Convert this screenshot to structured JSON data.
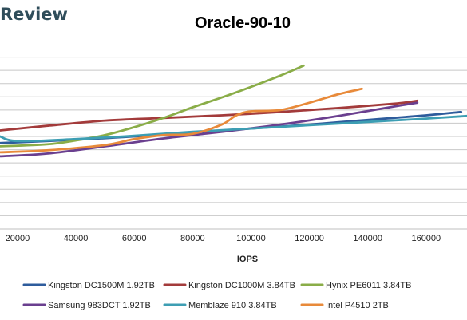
{
  "brand": {
    "text": "Review"
  },
  "chart_data": {
    "type": "line",
    "title": "Oracle-90-10",
    "xlabel": "IOPS",
    "ylabel": "",
    "xlim": [
      14000,
      174000
    ],
    "ylim": [
      0,
      14
    ],
    "x_ticks": [
      20000,
      40000,
      60000,
      80000,
      100000,
      120000,
      140000,
      160000
    ],
    "x_tick_labels": [
      "20000",
      "40000",
      "60000",
      "80000",
      "100000",
      "120000",
      "140000",
      "160000"
    ],
    "y_gridlines": [
      1,
      2,
      3,
      4,
      5,
      6,
      7,
      8,
      9,
      10,
      11,
      12,
      13
    ],
    "grid": true,
    "legend_position": "bottom",
    "series": [
      {
        "name": "Kingston DC1500M 1.92TB",
        "color": "#2e5c9c",
        "x": [
          14000,
          40000,
          60000,
          80000,
          100000,
          120000,
          140000,
          160000,
          172000
        ],
        "y": [
          6.5,
          6.75,
          7.0,
          7.3,
          7.6,
          7.9,
          8.25,
          8.6,
          8.85
        ]
      },
      {
        "name": "Kingston DC1000M 3.84TB",
        "color": "#a33b3b",
        "x": [
          14000,
          30000,
          50000,
          70000,
          90000,
          110000,
          130000,
          150000,
          157000
        ],
        "y": [
          7.45,
          7.8,
          8.2,
          8.4,
          8.6,
          8.85,
          9.15,
          9.5,
          9.7
        ]
      },
      {
        "name": "Hynix PE6011 3.84TB",
        "color": "#8aad48",
        "x": [
          14000,
          30000,
          40000,
          50000,
          60000,
          70000,
          80000,
          90000,
          100000,
          110000,
          118000
        ],
        "y": [
          6.25,
          6.4,
          6.7,
          7.1,
          7.7,
          8.4,
          9.2,
          9.95,
          10.75,
          11.6,
          12.35
        ]
      },
      {
        "name": "Samsung 983DCT 1.92TB",
        "color": "#6a3f8f",
        "x": [
          14000,
          30000,
          50000,
          70000,
          90000,
          110000,
          130000,
          150000,
          157000
        ],
        "y": [
          5.5,
          5.7,
          6.25,
          6.85,
          7.35,
          7.9,
          8.55,
          9.3,
          9.55
        ]
      },
      {
        "name": "Memblaze 910 3.84TB",
        "color": "#3d9eb3",
        "x": [
          14000,
          20000,
          40000,
          60000,
          80000,
          100000,
          120000,
          140000,
          160000,
          174000
        ],
        "y": [
          7.0,
          6.65,
          6.8,
          7.05,
          7.35,
          7.6,
          7.85,
          8.1,
          8.35,
          8.55
        ]
      },
      {
        "name": "Intel P4510 2TB",
        "color": "#e88a3a",
        "x": [
          14000,
          30000,
          50000,
          60000,
          70000,
          80000,
          90000,
          95000,
          100000,
          110000,
          120000,
          130000,
          138000
        ],
        "y": [
          5.8,
          5.95,
          6.35,
          6.8,
          7.1,
          7.2,
          7.9,
          8.6,
          8.9,
          9.0,
          9.55,
          10.2,
          10.6
        ]
      }
    ]
  }
}
